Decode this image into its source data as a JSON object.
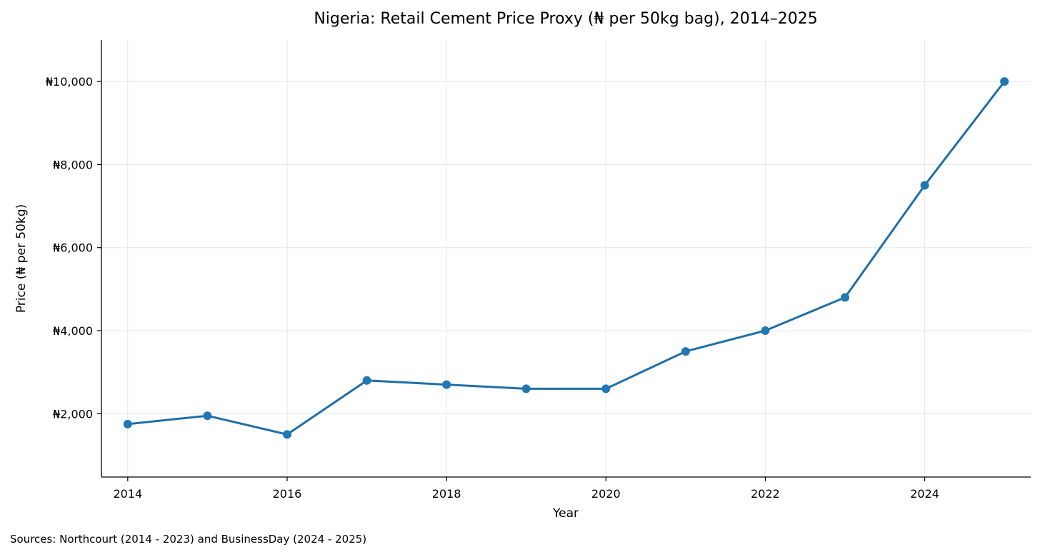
{
  "chart_data": {
    "type": "line",
    "title": "Nigeria: Retail Cement Price Proxy (₦ per 50kg bag), 2014–2025",
    "xlabel": "Year",
    "ylabel": "Price (₦ per 50kg)",
    "x": [
      2014,
      2015,
      2016,
      2017,
      2018,
      2019,
      2020,
      2021,
      2022,
      2023,
      2024,
      2025
    ],
    "series": [
      {
        "values": [
          1750,
          1950,
          1500,
          2800,
          2700,
          2600,
          2600,
          3500,
          4000,
          4800,
          7500,
          10000
        ]
      }
    ],
    "xlim": [
      2013.67,
      2025.33
    ],
    "ylim": [
      475,
      11000
    ],
    "xticks": [
      "2014",
      "2016",
      "2018",
      "2020",
      "2022",
      "2024"
    ],
    "yticks": [
      "₦2,000",
      "₦4,000",
      "₦6,000",
      "₦8,000",
      "₦10,000"
    ],
    "grid": true,
    "colors": {
      "line": "#1f6fa8",
      "marker": "#1f77b4",
      "grid": "#e6e6e6",
      "axis": "#000000"
    }
  },
  "footer": {
    "source": "Sources: Northcourt (2014 - 2023) and BusinessDay (2024 - 2025)"
  }
}
